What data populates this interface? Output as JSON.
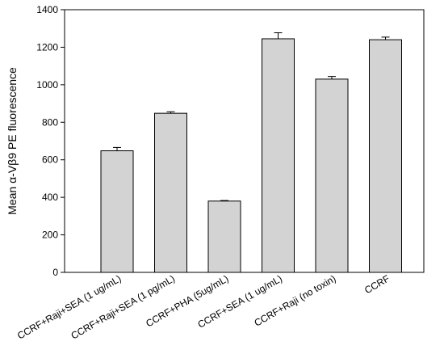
{
  "chart_data": {
    "type": "bar",
    "title": "",
    "xlabel": "",
    "ylabel": "Mean α-Vβ9 PE fluorescence",
    "ylim": [
      0,
      1400
    ],
    "yticks": [
      0,
      200,
      400,
      600,
      800,
      1000,
      1200,
      1400
    ],
    "grid": false,
    "categories": [
      "CCRF+Raji+SEA (1 ug/mL)",
      "CCRF+Raji+SEA (1 pg/mL)",
      "CCRF+PHA (5ug/mL)",
      "CCRF+SEA (1 ug/mL)",
      "CCRF+Raji (no toxin)",
      "CCRF"
    ],
    "values": [
      648,
      848,
      380,
      1245,
      1030,
      1240
    ],
    "errors": [
      18,
      8,
      3,
      32,
      14,
      14
    ],
    "bar_color": "#d3d3d3",
    "edge_color": "#000000"
  }
}
